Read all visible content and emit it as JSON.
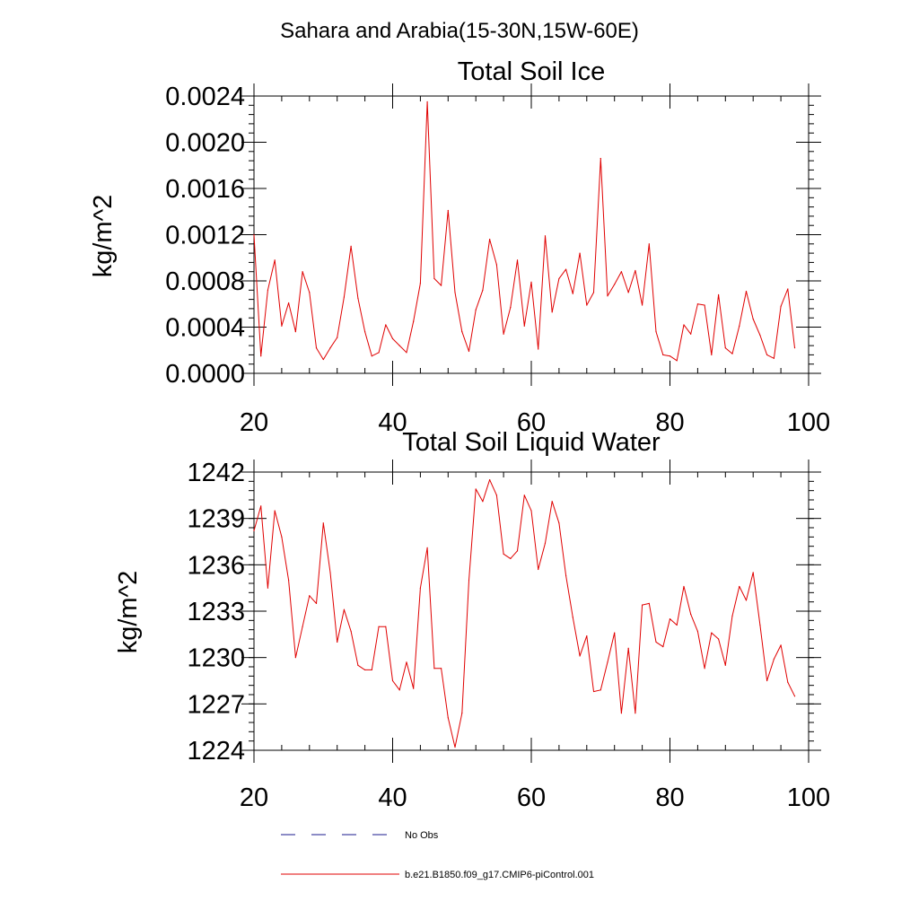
{
  "figure": {
    "suptitle": "Sahara and Arabia(15-30N,15W-60E)"
  },
  "legend": {
    "items": [
      {
        "label": "No Obs",
        "color": "#1a1a8c",
        "style": "dashed"
      },
      {
        "label": "b.e21.B1850.f09_g17.CMIP6-piControl.001",
        "color": "#e00000",
        "style": "solid"
      }
    ]
  },
  "chart_data": [
    {
      "type": "line",
      "title": "Total Soil Ice",
      "xlabel": "",
      "ylabel": "kg/m^2",
      "xlim": [
        20,
        100
      ],
      "ylim": [
        0,
        0.0024
      ],
      "xticks": [
        20,
        40,
        60,
        80,
        100
      ],
      "xtick_labels": [
        "20",
        "40",
        "60",
        "80",
        "100"
      ],
      "yticks": [
        0,
        0.0004,
        0.0008,
        0.0012,
        0.0016,
        0.002,
        0.0024
      ],
      "ytick_labels": [
        "0.0000",
        "0.0004",
        "0.0008",
        "0.0012",
        "0.0016",
        "0.0020",
        "0.0024"
      ],
      "grid": false,
      "series": [
        {
          "name": "b.e21.B1850.f09_g17.CMIP6-piControl.001",
          "color": "#e00000",
          "x": [
            20,
            21,
            22,
            23,
            24,
            25,
            26,
            27,
            28,
            29,
            30,
            31,
            32,
            33,
            34,
            35,
            36,
            37,
            38,
            39,
            40,
            41,
            42,
            43,
            44,
            45,
            46,
            47,
            48,
            49,
            50,
            51,
            52,
            53,
            54,
            55,
            56,
            57,
            58,
            59,
            60,
            61,
            62,
            63,
            64,
            65,
            66,
            67,
            68,
            69,
            70,
            71,
            72,
            73,
            74,
            75,
            76,
            77,
            78,
            79,
            80,
            81,
            82,
            83,
            84,
            85,
            86,
            87,
            88,
            89,
            90,
            91,
            92,
            93,
            94,
            95,
            96,
            97,
            98
          ],
          "y": [
            0.0012,
            0.00015,
            0.00072,
            0.00098,
            0.00041,
            0.00061,
            0.00036,
            0.00088,
            0.0007,
            0.00022,
            0.00012,
            0.00022,
            0.00031,
            0.00066,
            0.0011,
            0.00065,
            0.00036,
            0.00015,
            0.00018,
            0.00042,
            0.0003,
            0.00024,
            0.00018,
            0.00045,
            0.00078,
            0.00235,
            0.00082,
            0.00076,
            0.00141,
            0.0007,
            0.00036,
            0.00019,
            0.00055,
            0.00072,
            0.00116,
            0.00094,
            0.00034,
            0.00057,
            0.00098,
            0.00041,
            0.00079,
            0.00021,
            0.00119,
            0.00053,
            0.00082,
            0.0009,
            0.00069,
            0.00104,
            0.00059,
            0.0007,
            0.00186,
            0.00067,
            0.00077,
            0.00088,
            0.0007,
            0.00089,
            0.00059,
            0.00112,
            0.00036,
            0.00016,
            0.00015,
            0.00011,
            0.00042,
            0.00034,
            0.0006,
            0.00059,
            0.00016,
            0.00068,
            0.00022,
            0.00017,
            0.00041,
            0.00071,
            0.00047,
            0.00033,
            0.00016,
            0.00013,
            0.00058,
            0.00073,
            0.00022
          ]
        }
      ]
    },
    {
      "type": "line",
      "title": "Total Soil Liquid Water",
      "xlabel": "",
      "ylabel": "kg/m^2",
      "xlim": [
        20,
        100
      ],
      "ylim": [
        1224,
        1242
      ],
      "xticks": [
        20,
        40,
        60,
        80,
        100
      ],
      "xtick_labels": [
        "20",
        "40",
        "60",
        "80",
        "100"
      ],
      "yticks": [
        1224,
        1227,
        1230,
        1233,
        1236,
        1239,
        1242
      ],
      "ytick_labels": [
        "1224",
        "1227",
        "1230",
        "1233",
        "1236",
        "1239",
        "1242"
      ],
      "grid": false,
      "series": [
        {
          "name": "b.e21.B1850.f09_g17.CMIP6-piControl.001",
          "color": "#e00000",
          "x": [
            20,
            21,
            22,
            23,
            24,
            25,
            26,
            27,
            28,
            29,
            30,
            31,
            32,
            33,
            34,
            35,
            36,
            37,
            38,
            39,
            40,
            41,
            42,
            43,
            44,
            45,
            46,
            47,
            48,
            49,
            50,
            51,
            52,
            53,
            54,
            55,
            56,
            57,
            58,
            59,
            60,
            61,
            62,
            63,
            64,
            65,
            66,
            67,
            68,
            69,
            70,
            71,
            72,
            73,
            74,
            75,
            76,
            77,
            78,
            79,
            80,
            81,
            82,
            83,
            84,
            85,
            86,
            87,
            88,
            89,
            90,
            91,
            92,
            93,
            94,
            95,
            96,
            97,
            98
          ],
          "y": [
            1238.2,
            1239.8,
            1234.5,
            1239.5,
            1237.8,
            1235,
            1230,
            1232,
            1234,
            1233.5,
            1238.7,
            1235.5,
            1231,
            1233.1,
            1231.7,
            1229.5,
            1229.2,
            1229.2,
            1232,
            1232,
            1228.5,
            1227.9,
            1229.7,
            1228,
            1234.5,
            1237.1,
            1229.3,
            1229.3,
            1226.1,
            1224.2,
            1226.4,
            1235,
            1240.9,
            1240.1,
            1241.5,
            1240.5,
            1236.7,
            1236.4,
            1236.9,
            1240.5,
            1239.5,
            1235.7,
            1237.4,
            1240.1,
            1238.7,
            1235.3,
            1232.6,
            1230.1,
            1231.4,
            1227.8,
            1227.9,
            1229.7,
            1231.6,
            1226.4,
            1230.6,
            1226.4,
            1233.4,
            1233.5,
            1231,
            1230.7,
            1232.5,
            1232.1,
            1234.6,
            1232.8,
            1231.7,
            1229.3,
            1231.6,
            1231.2,
            1229.5,
            1232.7,
            1234.6,
            1233.7,
            1235.5,
            1232.1,
            1228.5,
            1229.9,
            1230.8,
            1228.4,
            1227.5
          ]
        }
      ]
    }
  ]
}
